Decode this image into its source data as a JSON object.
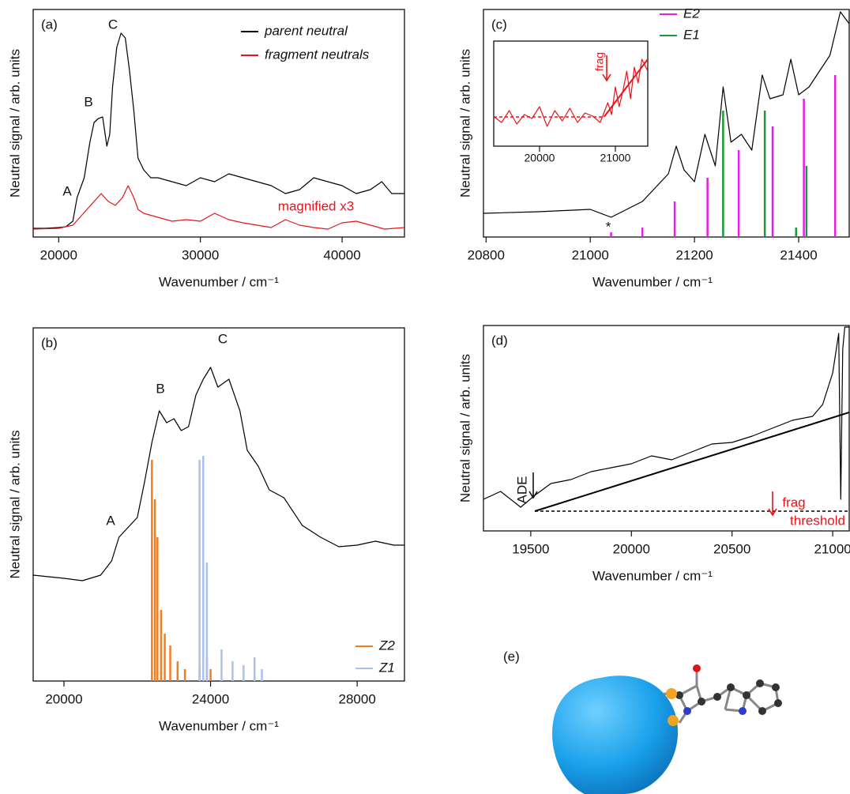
{
  "chart_data": [
    {
      "type": "line",
      "label": "(a)",
      "x_label": "Wavenumber / cm⁻¹",
      "y_label": "Neutral signal / arb. units",
      "xlim": [
        18200,
        44400
      ],
      "ylim": [
        0,
        288
      ],
      "xticks": [
        20000,
        30000,
        40000
      ],
      "legend": "upper right",
      "annotations": [
        "A",
        "B",
        "C",
        "magnified x3"
      ],
      "series": [
        {
          "name": "parent neutral",
          "type": "line",
          "color": "#000000",
          "x": [
            18200,
            19000,
            20000,
            20500,
            21000,
            21300,
            21800,
            22200,
            22500,
            22800,
            23100,
            23400,
            23600,
            23800,
            24100,
            24400,
            24700,
            25000,
            25300,
            25600,
            26000,
            26500,
            27000,
            28000,
            29000,
            30000,
            31000,
            32000,
            33000,
            34000,
            35000,
            36000,
            37000,
            38000,
            39000,
            40000,
            41000,
            42000,
            42800,
            43500,
            44400
          ],
          "values": [
            11,
            11,
            12,
            13,
            20,
            50,
            75,
            120,
            145,
            150,
            152,
            115,
            130,
            190,
            240,
            258,
            252,
            210,
            160,
            100,
            85,
            75,
            75,
            70,
            65,
            75,
            70,
            80,
            75,
            70,
            65,
            55,
            60,
            75,
            70,
            65,
            55,
            60,
            70,
            55,
            55
          ]
        },
        {
          "name": "fragment neutrals",
          "type": "line",
          "color": "#e8141b",
          "x": [
            18200,
            20000,
            21000,
            21500,
            22000,
            22500,
            23000,
            23500,
            24000,
            24500,
            24900,
            25300,
            25600,
            26000,
            27000,
            28000,
            29000,
            30000,
            31000,
            32000,
            33000,
            34000,
            35000,
            36000,
            37000,
            38000,
            39000,
            40000,
            41000,
            42000,
            43000,
            44400
          ],
          "values": [
            10,
            11,
            15,
            25,
            35,
            45,
            55,
            45,
            40,
            50,
            65,
            50,
            35,
            30,
            25,
            20,
            22,
            20,
            30,
            22,
            18,
            15,
            12,
            22,
            15,
            12,
            10,
            18,
            20,
            15,
            10,
            12
          ]
        }
      ]
    },
    {
      "type": "line",
      "label": "(b)",
      "x_label": "Wavenumber / cm⁻¹",
      "y_label": "Neutral signal / arb. units",
      "xlim": [
        19160,
        29290
      ],
      "ylim": [
        0,
        447
      ],
      "xticks": [
        20000,
        24000,
        28000
      ],
      "legend": "lower right",
      "annotations": [
        "A",
        "B",
        "C"
      ],
      "series": [
        {
          "type": "line",
          "color": "#000000",
          "x": [
            19160,
            20000,
            20500,
            21000,
            21300,
            21500,
            21800,
            22000,
            22200,
            22400,
            22600,
            22800,
            23000,
            23200,
            23400,
            23600,
            23800,
            24000,
            24200,
            24500,
            24800,
            25000,
            25300,
            25600,
            26000,
            26500,
            27000,
            27500,
            28000,
            28500,
            29000,
            29290
          ],
          "values": [
            134,
            130,
            127,
            134,
            152,
            182,
            197,
            207,
            252,
            302,
            342,
            327,
            332,
            317,
            322,
            362,
            382,
            397,
            372,
            382,
            342,
            292,
            272,
            242,
            232,
            197,
            182,
            170,
            172,
            177,
            172,
            172
          ]
        },
        {
          "name": "Z2",
          "type": "stick",
          "color": "#f07f22",
          "x": [
            22400,
            22480,
            22550,
            22650,
            22750,
            22900,
            23100,
            23300,
            23700,
            23900,
            24000
          ],
          "values": [
            280,
            230,
            182,
            90,
            60,
            45,
            25,
            15,
            20,
            30,
            15
          ]
        },
        {
          "name": "Z1",
          "type": "stick",
          "color": "#a9c1f0",
          "x": [
            23700,
            23800,
            23900,
            24300,
            24600,
            24900,
            25200,
            25400
          ],
          "values": [
            280,
            285,
            150,
            40,
            25,
            20,
            30,
            15
          ]
        }
      ]
    },
    {
      "type": "line",
      "label": "(c)",
      "x_label": "Wavenumber / cm⁻¹",
      "y_label": "Neutral signal / arb. units",
      "xlim": [
        20795,
        21497
      ],
      "ylim": [
        0,
        288
      ],
      "xticks": [
        20800,
        21000,
        21200,
        21400
      ],
      "legend": "top",
      "annotations": [
        "*"
      ],
      "series": [
        {
          "type": "line",
          "color": "#000000",
          "x": [
            20795,
            20900,
            21000,
            21040,
            21100,
            21150,
            21165,
            21180,
            21200,
            21220,
            21240,
            21255,
            21270,
            21290,
            21310,
            21330,
            21345,
            21370,
            21385,
            21400,
            21420,
            21440,
            21460,
            21480,
            21497
          ],
          "values": [
            30,
            32,
            35,
            25,
            45,
            80,
            115,
            85,
            70,
            130,
            90,
            190,
            120,
            130,
            110,
            205,
            175,
            180,
            225,
            180,
            190,
            210,
            230,
            285,
            270
          ]
        },
        {
          "name": "E2",
          "type": "stick",
          "color": "#e81ee8",
          "x": [
            21040,
            21100,
            21162,
            21225,
            21285,
            21350,
            21410,
            21470
          ],
          "values": [
            6,
            12,
            45,
            75,
            110,
            140,
            175,
            205
          ]
        },
        {
          "name": "E1",
          "type": "stick",
          "color": "#1a9a3a",
          "x": [
            21255,
            21335,
            21395,
            21415
          ],
          "values": [
            160,
            160,
            12,
            90
          ]
        }
      ]
    },
    {
      "type": "line",
      "xlim": [
        19396,
        21427
      ],
      "ylim": [
        0,
        133
      ],
      "xticks": [
        20000,
        21000
      ],
      "annotations": [
        "frag"
      ],
      "series": [
        {
          "type": "line",
          "color": "#e8141b",
          "x": [
            19400,
            19500,
            19600,
            19700,
            19800,
            19900,
            20000,
            20100,
            20200,
            20300,
            20400,
            20500,
            20600,
            20700,
            20800,
            20900,
            20950,
            21000,
            21050,
            21100,
            21150,
            21200,
            21250,
            21300,
            21350,
            21427
          ],
          "values": [
            37,
            30,
            45,
            28,
            40,
            35,
            50,
            25,
            45,
            32,
            48,
            30,
            42,
            38,
            30,
            55,
            40,
            75,
            50,
            70,
            95,
            60,
            100,
            80,
            110,
            95
          ]
        },
        {
          "type": "line",
          "dash": true,
          "color": "#e8141b",
          "x": [
            19396,
            20850
          ],
          "values": [
            37,
            37
          ]
        },
        {
          "type": "line",
          "color": "#e8141b",
          "x": [
            20850,
            21427
          ],
          "values": [
            37,
            110
          ]
        }
      ]
    },
    {
      "type": "line",
      "label": "(d)",
      "x_label": "Wavenumber / cm⁻¹",
      "y_label": "Neutral signal / arb. units",
      "xlim": [
        19265,
        21082
      ],
      "ylim": [
        0,
        260
      ],
      "xticks": [
        19500,
        20000,
        20500,
        21000
      ],
      "annotations": [
        "ADE",
        "frag",
        "threshold"
      ],
      "series": [
        {
          "type": "line",
          "color": "#000000",
          "x": [
            19265,
            19350,
            19450,
            19520,
            19600,
            19700,
            19800,
            19900,
            20000,
            20100,
            20200,
            20300,
            20400,
            20500,
            20600,
            20700,
            20800,
            20900,
            20950,
            21000,
            21030,
            21040,
            21050,
            21060,
            21082
          ],
          "values": [
            40,
            50,
            30,
            45,
            60,
            65,
            75,
            80,
            85,
            95,
            90,
            100,
            110,
            112,
            120,
            130,
            140,
            145,
            160,
            200,
            250,
            40,
            230,
            258,
            258
          ]
        },
        {
          "type": "line",
          "color": "#000000",
          "x": [
            19520,
            21082
          ],
          "values": [
            25,
            150
          ]
        },
        {
          "type": "line",
          "dash": true,
          "color": "#000000",
          "x": [
            19520,
            21082
          ],
          "values": [
            25,
            25
          ]
        }
      ]
    }
  ],
  "panel_e": {
    "label": "(e)"
  }
}
